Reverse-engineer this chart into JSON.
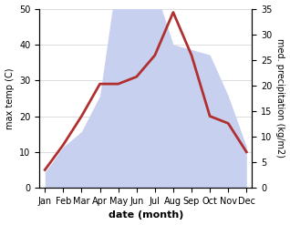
{
  "months": [
    "Jan",
    "Feb",
    "Mar",
    "Apr",
    "May",
    "Jun",
    "Jul",
    "Aug",
    "Sep",
    "Oct",
    "Nov",
    "Dec"
  ],
  "temperature": [
    5,
    12,
    20,
    29,
    29,
    31,
    37,
    49,
    37,
    20,
    18,
    10
  ],
  "precipitation": [
    3,
    8,
    11,
    18,
    43,
    38,
    39,
    28,
    27,
    26,
    18,
    8
  ],
  "temp_color": "#b03030",
  "precip_fill_color": "#c8d0f0",
  "temp_ylim": [
    0,
    50
  ],
  "precip_ylim": [
    0,
    35
  ],
  "temp_yticks": [
    0,
    10,
    20,
    30,
    40,
    50
  ],
  "precip_yticks": [
    0,
    5,
    10,
    15,
    20,
    25,
    30,
    35
  ],
  "xlabel": "date (month)",
  "ylabel_left": "max temp (C)",
  "ylabel_right": "med. precipitation (kg/m2)",
  "background_color": "#ffffff",
  "grid_color": "#d0d0d0"
}
